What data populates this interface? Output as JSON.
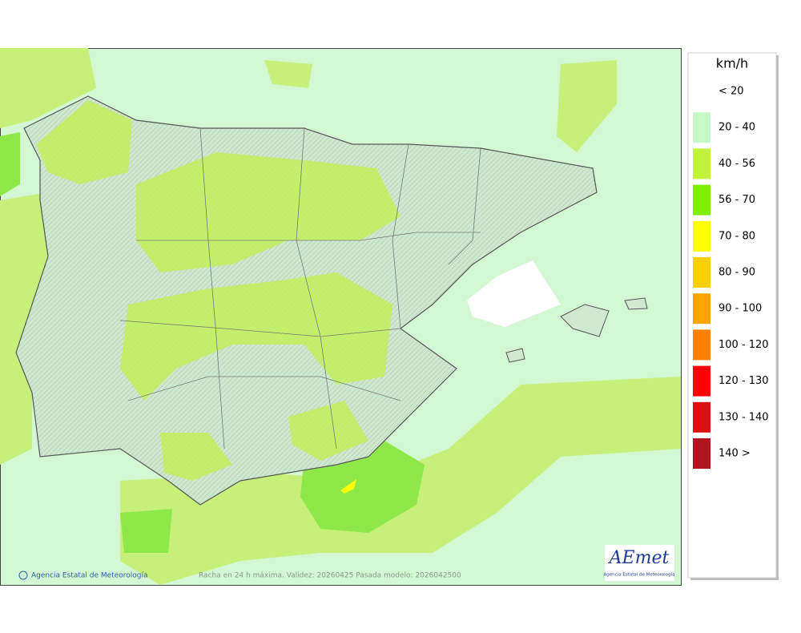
{
  "legend": {
    "title": "km/h",
    "items": [
      {
        "label": "< 20"
      },
      {
        "label": "20 - 40",
        "color": "#c8f7c8"
      },
      {
        "label": "40 - 56",
        "color": "#c2f23a"
      },
      {
        "label": "56 - 70",
        "color": "#7ff000"
      },
      {
        "label": "70 - 80",
        "color": "#ffff00"
      },
      {
        "label": "80 - 90",
        "color": "#ffd000"
      },
      {
        "label": "90 - 100",
        "color": "#ffa500"
      },
      {
        "label": "100 - 120",
        "color": "#ff8000"
      },
      {
        "label": "120 - 130",
        "color": "#ff0000"
      },
      {
        "label": "130 - 140",
        "color": "#dd1010"
      },
      {
        "label": "140 >",
        "color": "#b0141e"
      }
    ]
  },
  "footer": {
    "credit": "Agencia Estatal de Meteorología",
    "caption": "Racha en 24 h máxima. Validez: 20260425 Pasada modelo: 2026042500"
  },
  "logo": {
    "name": "AEmet",
    "subtitle": "Agencia Estatal de Meteorología"
  }
}
